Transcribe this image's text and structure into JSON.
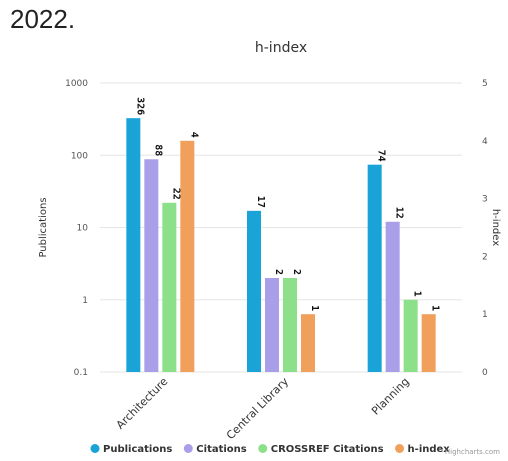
{
  "page": {
    "heading": "2022."
  },
  "chart_data": {
    "type": "bar",
    "title": "h-index",
    "categories": [
      "Architecture",
      "Central Library",
      "Planning"
    ],
    "series": [
      {
        "name": "Publications",
        "axis": "left",
        "color": "#1aa3d6",
        "values": [
          326,
          17,
          74
        ]
      },
      {
        "name": "Citations",
        "axis": "left",
        "color": "#a99ee8",
        "values": [
          88,
          2,
          12
        ]
      },
      {
        "name": "CROSSREF Citations",
        "axis": "left",
        "color": "#8de08a",
        "values": [
          22,
          2,
          1
        ]
      },
      {
        "name": "h-index",
        "axis": "right",
        "color": "#f0a05a",
        "values": [
          4,
          1,
          1
        ]
      }
    ],
    "y_left": {
      "label": "Publications",
      "scale": "log",
      "ticks": [
        "0.1",
        "1",
        "10",
        "100",
        "1000"
      ],
      "range": [
        0.1,
        1000
      ]
    },
    "y_right": {
      "label": "h-index",
      "scale": "linear",
      "ticks": [
        "0",
        "1",
        "2",
        "3",
        "4",
        "5"
      ],
      "range": [
        0,
        5
      ]
    },
    "grid": true,
    "legend_position": "bottom",
    "credits": "Highcharts.com"
  }
}
